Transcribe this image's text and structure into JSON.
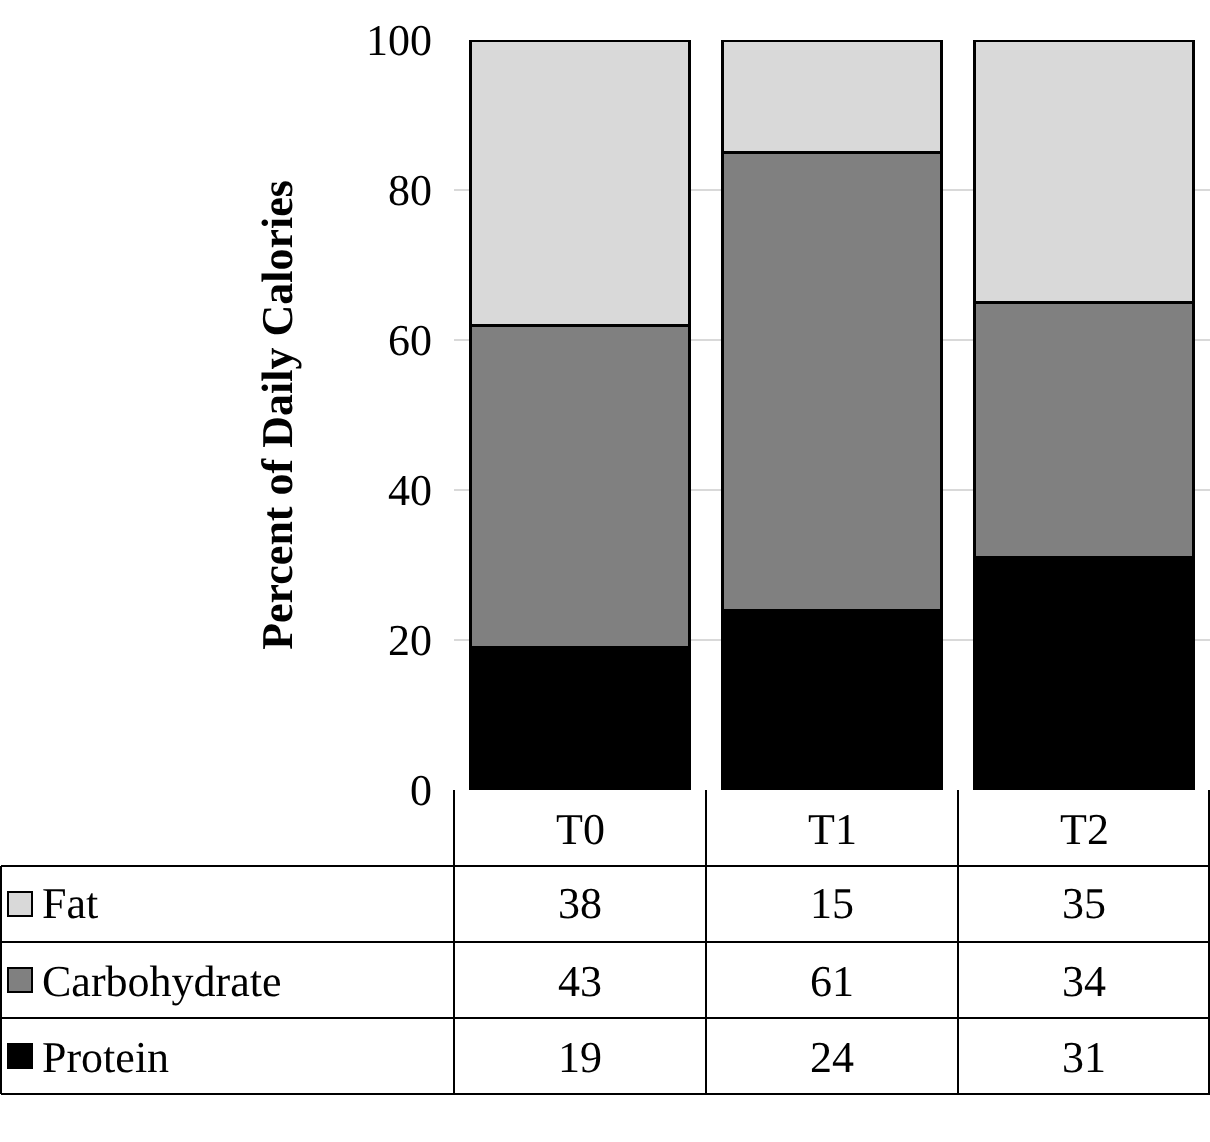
{
  "chart_data": {
    "type": "bar",
    "stacked": true,
    "ylabel": "Percent of Daily Calories",
    "categories": [
      "T0",
      "T1",
      "T2"
    ],
    "series": [
      {
        "name": "Protein",
        "color": "#000000",
        "values": [
          19,
          24,
          31
        ]
      },
      {
        "name": "Carbohydrate",
        "color": "#808080",
        "values": [
          43,
          61,
          34
        ]
      },
      {
        "name": "Fat",
        "color": "#d9d9d9",
        "values": [
          38,
          15,
          35
        ]
      }
    ],
    "ylim": [
      0,
      100
    ],
    "yticks": [
      0,
      20,
      40,
      60,
      80,
      100
    ],
    "grid": "y",
    "data_labels": true,
    "legend": "bottom"
  }
}
